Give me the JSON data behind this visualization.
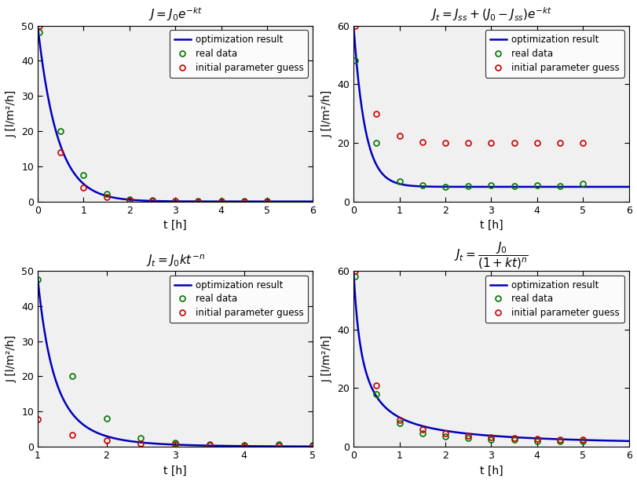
{
  "subplot1": {
    "title": "$J = J_0e^{-kt}$",
    "model": "exp_decay",
    "J0": 50.0,
    "k_opt": 2.3,
    "t_range": [
      0,
      6
    ],
    "ylim": [
      0,
      50
    ],
    "yticks": [
      0,
      10,
      20,
      30,
      40,
      50
    ],
    "xticks": [
      0,
      1,
      2,
      3,
      4,
      5,
      6
    ],
    "real_data_t": [
      0.03,
      0.5,
      1.0,
      1.5,
      2.0,
      2.5,
      3.0,
      3.5,
      4.0,
      4.5,
      5.0
    ],
    "real_data_J": [
      48.0,
      20.0,
      7.5,
      2.2,
      0.7,
      0.3,
      0.15,
      0.1,
      0.05,
      0.05,
      0.05
    ],
    "init_t": [
      0.03,
      0.5,
      1.0,
      1.5,
      2.0,
      2.5,
      3.0,
      3.5,
      4.0,
      4.5,
      5.0
    ],
    "init_J": [
      50.0,
      14.0,
      4.0,
      1.2,
      0.4,
      0.12,
      0.04,
      0.01,
      0.004,
      0.001,
      0.0004
    ],
    "xlabel": "t [h]",
    "ylabel": "J [l/m²/h]"
  },
  "subplot2": {
    "title": "$J_t = J_{ss} + (J_0 - J_{ss})e^{-kt}$",
    "model": "exp_decay_ss",
    "J0": 60.0,
    "Jss_opt": 5.0,
    "k_opt": 4.0,
    "Jss_init": 20.0,
    "k_init": 1.5,
    "t_range": [
      0,
      6
    ],
    "ylim": [
      0,
      60
    ],
    "yticks": [
      0,
      20,
      40,
      60
    ],
    "xticks": [
      0,
      1,
      2,
      3,
      4,
      5,
      6
    ],
    "real_data_t": [
      0.03,
      0.5,
      1.0,
      1.5,
      2.0,
      2.5,
      3.0,
      3.5,
      4.0,
      4.5,
      5.0
    ],
    "real_data_J": [
      48.0,
      20.0,
      7.0,
      5.5,
      5.0,
      5.2,
      5.5,
      5.2,
      5.5,
      5.2,
      6.0
    ],
    "init_t": [
      0.03,
      0.5,
      1.0,
      1.5,
      2.0,
      2.5,
      3.0,
      3.5,
      4.0,
      4.5,
      5.0
    ],
    "init_J": [
      60.0,
      30.0,
      22.5,
      20.3,
      20.1,
      20.0,
      20.0,
      20.0,
      20.0,
      20.0,
      20.0
    ],
    "xlabel": "t [h]",
    "ylabel": "J [l/m²/h]"
  },
  "subplot3": {
    "title": "$J_t = J_0kt^{-n}$",
    "model": "power_law",
    "J0k": 48.0,
    "n_opt": 4.0,
    "t_range": [
      1,
      5
    ],
    "ylim": [
      0,
      50
    ],
    "yticks": [
      0,
      10,
      20,
      30,
      40,
      50
    ],
    "xticks": [
      1,
      2,
      3,
      4,
      5
    ],
    "real_data_t": [
      1.0,
      1.5,
      2.0,
      2.5,
      3.0,
      3.5,
      4.0,
      4.5,
      5.0
    ],
    "real_data_J": [
      47.5,
      20.0,
      8.0,
      2.5,
      1.2,
      0.7,
      0.5,
      0.6,
      0.4
    ],
    "init_t": [
      1.0,
      1.5,
      2.0,
      2.5,
      3.0,
      3.5,
      4.0,
      4.5,
      5.0
    ],
    "init_J": [
      7.8,
      3.3,
      1.7,
      1.0,
      0.65,
      0.45,
      0.35,
      0.28,
      0.23
    ],
    "xlabel": "t [h]",
    "ylabel": "J [l/m²/h]"
  },
  "subplot4": {
    "title_line1": "$J_t = \\\\dfrac{J_0}{(1+kt)^n}$",
    "model": "power_decay",
    "J0": 60.0,
    "k_opt": 5.0,
    "n_opt": 1.0,
    "t_range": [
      0,
      6
    ],
    "ylim": [
      0,
      60
    ],
    "yticks": [
      0,
      20,
      40,
      60
    ],
    "xticks": [
      0,
      1,
      2,
      3,
      4,
      5,
      6
    ],
    "real_data_t": [
      0.03,
      0.5,
      1.0,
      1.5,
      2.0,
      2.5,
      3.0,
      3.5,
      4.0,
      4.5,
      5.0
    ],
    "real_data_J": [
      58.0,
      18.0,
      8.0,
      4.5,
      3.5,
      3.0,
      2.5,
      2.5,
      2.0,
      2.0,
      2.0
    ],
    "init_t": [
      0.03,
      0.5,
      1.0,
      1.5,
      2.0,
      2.5,
      3.0,
      3.5,
      4.0,
      4.5,
      5.0
    ],
    "init_J": [
      60.0,
      21.0,
      9.0,
      6.0,
      4.5,
      3.7,
      3.2,
      2.9,
      2.7,
      2.5,
      2.4
    ],
    "xlabel": "t [h]",
    "ylabel": "J [l/m²/h]"
  },
  "colors": {
    "line": "#0000BB",
    "real": "#007700",
    "init": "#CC0000"
  },
  "bg_color": "#f0f0f0",
  "legend_labels": [
    "optimization result",
    "real data",
    "initial parameter guess"
  ]
}
